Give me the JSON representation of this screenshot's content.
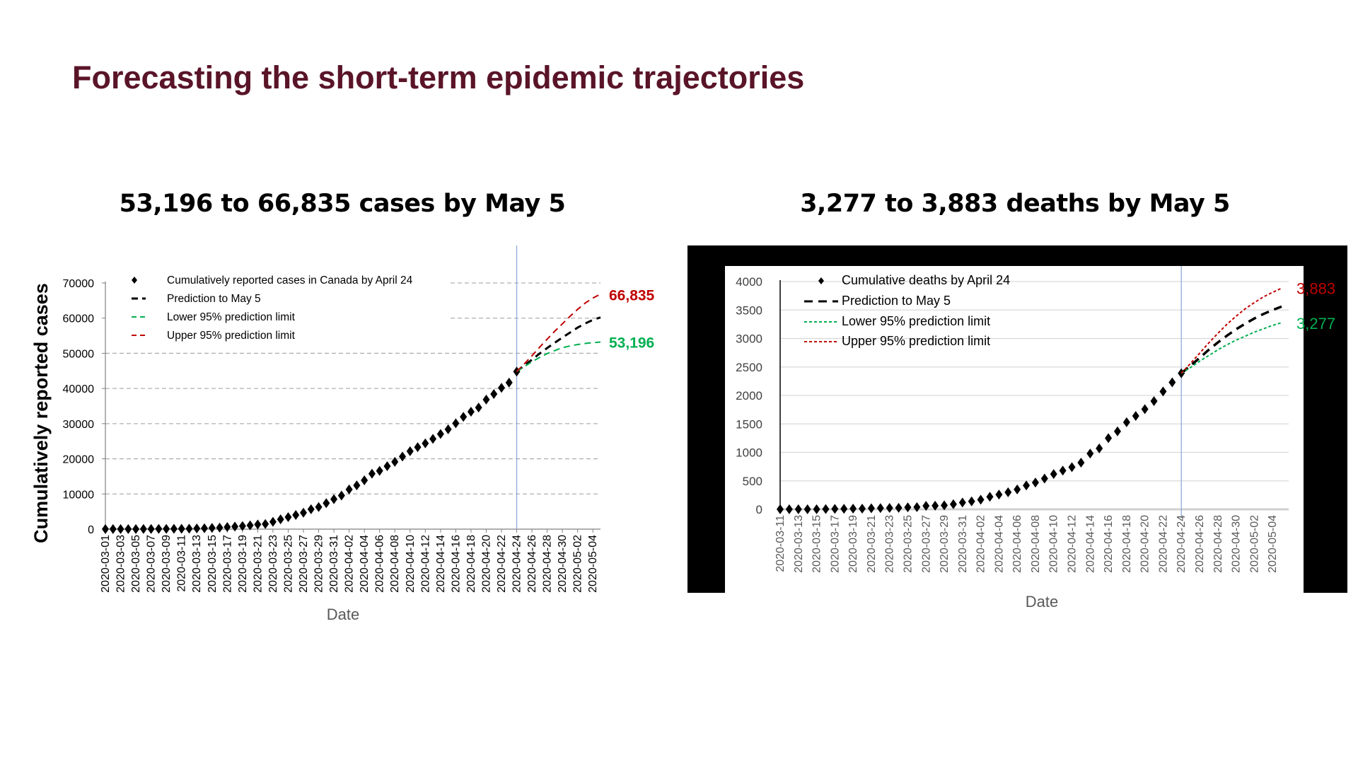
{
  "slide": {
    "title": "Forecasting the short-term epidemic trajectories"
  },
  "colors": {
    "title": "#5a1428",
    "observed": "#000000",
    "prediction": "#000000",
    "lower": "#00b050",
    "upper": "#c00000",
    "divider": "#8eaadb"
  },
  "chart_data": [
    {
      "type": "line",
      "title": "53,196 to 66,835 cases by May 5",
      "xlabel": "Date",
      "ylabel": "Cumulatively reported cases",
      "ylim": [
        0,
        70000
      ],
      "yticks": [
        "0",
        "10000",
        "20000",
        "30000",
        "40000",
        "50000",
        "60000",
        "70000"
      ],
      "ytick_values": [
        0,
        10000,
        20000,
        30000,
        40000,
        50000,
        60000,
        70000
      ],
      "grid": "dashed horizontal",
      "x_start": "2020-03-01",
      "x_end": "2020-05-05",
      "forecast_start": "2020-04-24",
      "xticks": [
        "2020-03-01",
        "2020-03-03",
        "2020-03-05",
        "2020-03-07",
        "2020-03-09",
        "2020-03-11",
        "2020-03-13",
        "2020-03-15",
        "2020-03-17",
        "2020-03-19",
        "2020-03-21",
        "2020-03-23",
        "2020-03-25",
        "2020-03-27",
        "2020-03-29",
        "2020-03-31",
        "2020-04-02",
        "2020-04-04",
        "2020-04-06",
        "2020-04-08",
        "2020-04-10",
        "2020-04-12",
        "2020-04-14",
        "2020-04-16",
        "2020-04-18",
        "2020-04-20",
        "2020-04-22",
        "2020-04-24",
        "2020-04-26",
        "2020-04-28",
        "2020-04-30",
        "2020-05-02",
        "2020-05-04"
      ],
      "legend": {
        "placement": "top-left",
        "entries": [
          "Cumulatively reported cases in Canada by April 24",
          "Prediction to May 5",
          "Lower 95% prediction limit",
          "Upper 95% prediction limit"
        ]
      },
      "annotations": {
        "upper_end": "66,835",
        "lower_end": "53,196"
      },
      "series": [
        {
          "name": "Cumulatively reported cases in Canada by April 24",
          "start": "2020-03-01",
          "style": "markers",
          "values": [
            24,
            27,
            30,
            34,
            37,
            46,
            55,
            64,
            77,
            93,
            103,
            117,
            198,
            249,
            341,
            424,
            598,
            727,
            873,
            1087,
            1331,
            1470,
            2088,
            2790,
            3409,
            4018,
            4682,
            5655,
            6280,
            7398,
            8527,
            9560,
            11284,
            12437,
            13882,
            15756,
            16563,
            17897,
            19141,
            20654,
            22148,
            23318,
            24383,
            25680,
            27063,
            28379,
            30106,
            31927,
            33383,
            34574,
            36831,
            38422,
            40190,
            41659,
            44800
          ]
        },
        {
          "name": "Prediction to May 5",
          "start": "2020-04-24",
          "style": "dashed",
          "values": [
            44800,
            46500,
            48200,
            49900,
            51500,
            53000,
            54500,
            55900,
            57300,
            58500,
            59500,
            60200
          ]
        },
        {
          "name": "Lower 95% prediction limit",
          "start": "2020-04-24",
          "style": "dashed",
          "values": [
            44800,
            46200,
            47600,
            48800,
            49900,
            50800,
            51600,
            52100,
            52500,
            52800,
            53050,
            53196
          ]
        },
        {
          "name": "Upper 95% prediction limit",
          "start": "2020-04-24",
          "style": "dashed",
          "values": [
            44800,
            47000,
            49300,
            51700,
            54000,
            56300,
            58400,
            60500,
            62500,
            64300,
            65700,
            66835
          ]
        }
      ]
    },
    {
      "type": "line",
      "title": "3,277 to 3,883 deaths by May 5",
      "xlabel": "Date",
      "ylabel": "",
      "ylim": [
        0,
        4000
      ],
      "yticks": [
        "0",
        "500",
        "1000",
        "1500",
        "2000",
        "2500",
        "3000",
        "3500",
        "4000"
      ],
      "ytick_values": [
        0,
        500,
        1000,
        1500,
        2000,
        2500,
        3000,
        3500,
        4000
      ],
      "grid": "solid horizontal",
      "x_start": "2020-03-11",
      "x_end": "2020-05-05",
      "forecast_start": "2020-04-24",
      "xticks": [
        "2020-03-11",
        "2020-03-13",
        "2020-03-15",
        "2020-03-17",
        "2020-03-19",
        "2020-03-21",
        "2020-03-23",
        "2020-03-25",
        "2020-03-27",
        "2020-03-29",
        "2020-03-31",
        "2020-04-02",
        "2020-04-04",
        "2020-04-06",
        "2020-04-08",
        "2020-04-10",
        "2020-04-12",
        "2020-04-14",
        "2020-04-16",
        "2020-04-18",
        "2020-04-20",
        "2020-04-22",
        "2020-04-24",
        "2020-04-26",
        "2020-04-28",
        "2020-04-30",
        "2020-05-02",
        "2020-05-04"
      ],
      "legend": {
        "placement": "top-left",
        "entries": [
          "Cumulative deaths by April 24",
          "Prediction to May 5",
          "Lower 95% prediction limit",
          "Upper 95% prediction limit"
        ]
      },
      "annotations": {
        "upper_end": "3,883",
        "lower_end": "3,277"
      },
      "series": [
        {
          "name": "Cumulative deaths by April 24",
          "start": "2020-03-11",
          "style": "markers",
          "values": [
            1,
            1,
            1,
            1,
            1,
            4,
            8,
            9,
            12,
            13,
            19,
            21,
            25,
            27,
            35,
            39,
            60,
            63,
            70,
            90,
            120,
            140,
            170,
            220,
            260,
            300,
            350,
            420,
            470,
            540,
            620,
            680,
            740,
            820,
            980,
            1070,
            1250,
            1370,
            1530,
            1640,
            1760,
            1900,
            2070,
            2230,
            2390
          ]
        },
        {
          "name": "Prediction to May 5",
          "start": "2020-04-24",
          "style": "dashed",
          "values": [
            2390,
            2520,
            2660,
            2800,
            2930,
            3050,
            3160,
            3260,
            3350,
            3430,
            3500,
            3560
          ]
        },
        {
          "name": "Lower 95% prediction limit",
          "start": "2020-04-24",
          "style": "dotted",
          "values": [
            2390,
            2490,
            2600,
            2700,
            2800,
            2890,
            2970,
            3040,
            3110,
            3170,
            3230,
            3277
          ]
        },
        {
          "name": "Upper 95% prediction limit",
          "start": "2020-04-24",
          "style": "dotted",
          "values": [
            2390,
            2560,
            2740,
            2920,
            3090,
            3250,
            3390,
            3520,
            3630,
            3730,
            3810,
            3883
          ]
        }
      ]
    }
  ]
}
